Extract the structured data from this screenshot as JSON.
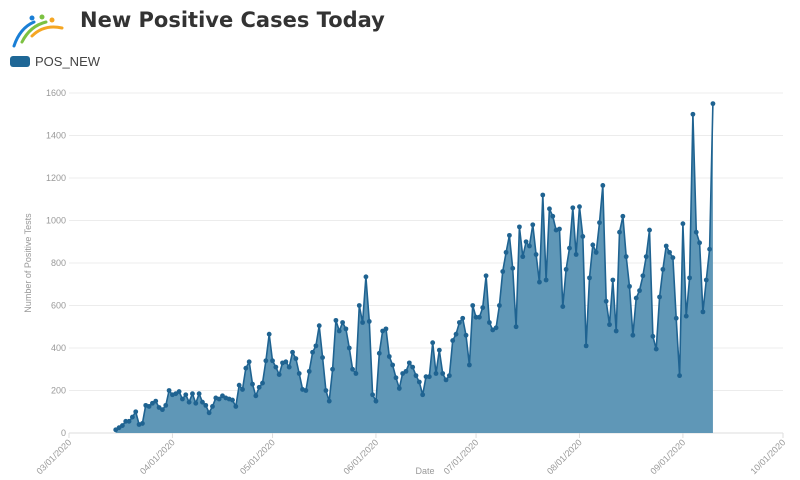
{
  "title": "New Positive Cases Today",
  "colors": {
    "line": "#1f6391",
    "fill": "#5f97b7",
    "legend": "#1f6796",
    "grid": "#ececec"
  },
  "chart_data": {
    "type": "area",
    "title": "New Positive Cases Today",
    "xlabel": "Date",
    "ylabel": "Number of Positive Tests",
    "ylim": [
      0,
      1600
    ],
    "xlim": [
      "03/01/2020",
      "10/01/2020"
    ],
    "grid": true,
    "legend": "top-left",
    "y_ticks": [
      "0",
      "200",
      "400",
      "600",
      "800",
      "1000",
      "1200",
      "1400",
      "1600"
    ],
    "x_ticks": [
      "03/01/2020",
      "04/01/2020",
      "05/01/2020",
      "06/01/2020",
      "07/01/2020",
      "08/01/2020",
      "09/01/2020",
      "10/01/2020"
    ],
    "series": [
      {
        "name": "POS_NEW",
        "x": [
          "03/15/2020",
          "03/16/2020",
          "03/17/2020",
          "03/18/2020",
          "03/19/2020",
          "03/20/2020",
          "03/21/2020",
          "03/22/2020",
          "03/23/2020",
          "03/24/2020",
          "03/25/2020",
          "03/26/2020",
          "03/27/2020",
          "03/28/2020",
          "03/29/2020",
          "03/30/2020",
          "03/31/2020",
          "04/01/2020",
          "04/02/2020",
          "04/03/2020",
          "04/04/2020",
          "04/05/2020",
          "04/06/2020",
          "04/07/2020",
          "04/08/2020",
          "04/09/2020",
          "04/10/2020",
          "04/11/2020",
          "04/12/2020",
          "04/13/2020",
          "04/14/2020",
          "04/15/2020",
          "04/16/2020",
          "04/17/2020",
          "04/18/2020",
          "04/19/2020",
          "04/20/2020",
          "04/21/2020",
          "04/22/2020",
          "04/23/2020",
          "04/24/2020",
          "04/25/2020",
          "04/26/2020",
          "04/27/2020",
          "04/28/2020",
          "04/29/2020",
          "04/30/2020",
          "05/01/2020",
          "05/02/2020",
          "05/03/2020",
          "05/04/2020",
          "05/05/2020",
          "05/06/2020",
          "05/07/2020",
          "05/08/2020",
          "05/09/2020",
          "05/10/2020",
          "05/11/2020",
          "05/12/2020",
          "05/13/2020",
          "05/14/2020",
          "05/15/2020",
          "05/16/2020",
          "05/17/2020",
          "05/18/2020",
          "05/19/2020",
          "05/20/2020",
          "05/21/2020",
          "05/22/2020",
          "05/23/2020",
          "05/24/2020",
          "05/25/2020",
          "05/26/2020",
          "05/27/2020",
          "05/28/2020",
          "05/29/2020",
          "05/30/2020",
          "05/31/2020",
          "06/01/2020",
          "06/02/2020",
          "06/03/2020",
          "06/04/2020",
          "06/05/2020",
          "06/06/2020",
          "06/07/2020",
          "06/08/2020",
          "06/09/2020",
          "06/10/2020",
          "06/11/2020",
          "06/12/2020",
          "06/13/2020",
          "06/14/2020",
          "06/15/2020",
          "06/16/2020",
          "06/17/2020",
          "06/18/2020",
          "06/19/2020",
          "06/20/2020",
          "06/21/2020",
          "06/22/2020",
          "06/23/2020",
          "06/24/2020",
          "06/25/2020",
          "06/26/2020",
          "06/27/2020",
          "06/28/2020",
          "06/29/2020",
          "06/30/2020",
          "07/01/2020",
          "07/02/2020",
          "07/03/2020",
          "07/04/2020",
          "07/05/2020",
          "07/06/2020",
          "07/07/2020",
          "07/08/2020",
          "07/09/2020",
          "07/10/2020",
          "07/11/2020",
          "07/12/2020",
          "07/13/2020",
          "07/14/2020",
          "07/15/2020",
          "07/16/2020",
          "07/17/2020",
          "07/18/2020",
          "07/19/2020",
          "07/20/2020",
          "07/21/2020",
          "07/22/2020",
          "07/23/2020",
          "07/24/2020",
          "07/25/2020",
          "07/26/2020",
          "07/27/2020",
          "07/28/2020",
          "07/29/2020",
          "07/30/2020",
          "07/31/2020",
          "08/01/2020",
          "08/02/2020",
          "08/03/2020",
          "08/04/2020",
          "08/05/2020",
          "08/06/2020",
          "08/07/2020",
          "08/08/2020",
          "08/09/2020",
          "08/10/2020",
          "08/11/2020",
          "08/12/2020",
          "08/13/2020",
          "08/14/2020",
          "08/15/2020",
          "08/16/2020",
          "08/17/2020",
          "08/18/2020",
          "08/19/2020",
          "08/20/2020",
          "08/21/2020",
          "08/22/2020",
          "08/23/2020",
          "08/24/2020",
          "08/25/2020",
          "08/26/2020",
          "08/27/2020",
          "08/28/2020",
          "08/29/2020",
          "08/30/2020",
          "08/31/2020",
          "09/01/2020",
          "09/02/2020",
          "09/03/2020",
          "09/04/2020",
          "09/05/2020",
          "09/06/2020",
          "09/07/2020",
          "09/08/2020",
          "09/09/2020",
          "09/10/2020"
        ],
        "values": [
          15,
          25,
          35,
          55,
          55,
          75,
          100,
          40,
          45,
          130,
          125,
          140,
          150,
          120,
          110,
          130,
          200,
          180,
          185,
          195,
          160,
          180,
          145,
          185,
          140,
          185,
          145,
          130,
          95,
          125,
          165,
          160,
          175,
          165,
          160,
          155,
          125,
          225,
          205,
          305,
          335,
          230,
          175,
          215,
          235,
          340,
          465,
          340,
          310,
          275,
          330,
          335,
          310,
          380,
          350,
          280,
          205,
          200,
          290,
          380,
          410,
          505,
          355,
          200,
          150,
          300,
          530,
          480,
          520,
          490,
          400,
          300,
          280,
          600,
          520,
          735,
          525,
          180,
          150,
          375,
          480,
          490,
          360,
          320,
          260,
          210,
          280,
          290,
          330,
          310,
          270,
          240,
          180,
          265,
          265,
          425,
          280,
          390,
          280,
          250,
          270,
          435,
          465,
          520,
          540,
          460,
          320,
          600,
          545,
          545,
          590,
          740,
          520,
          485,
          495,
          600,
          760,
          850,
          930,
          775,
          500,
          970,
          830,
          900,
          880,
          980,
          840,
          710,
          1120,
          720,
          1055,
          1020,
          955,
          960,
          595,
          770,
          870,
          1060,
          840,
          1065,
          925,
          410,
          730,
          885,
          850,
          990,
          1165,
          620,
          510,
          720,
          480,
          945,
          1020,
          830,
          690,
          460,
          635,
          670,
          740,
          830,
          955,
          455,
          395,
          640,
          770,
          880,
          850,
          825,
          540,
          270,
          985,
          550,
          730,
          1500,
          945,
          895,
          570,
          720,
          865,
          1550
        ]
      }
    ]
  }
}
